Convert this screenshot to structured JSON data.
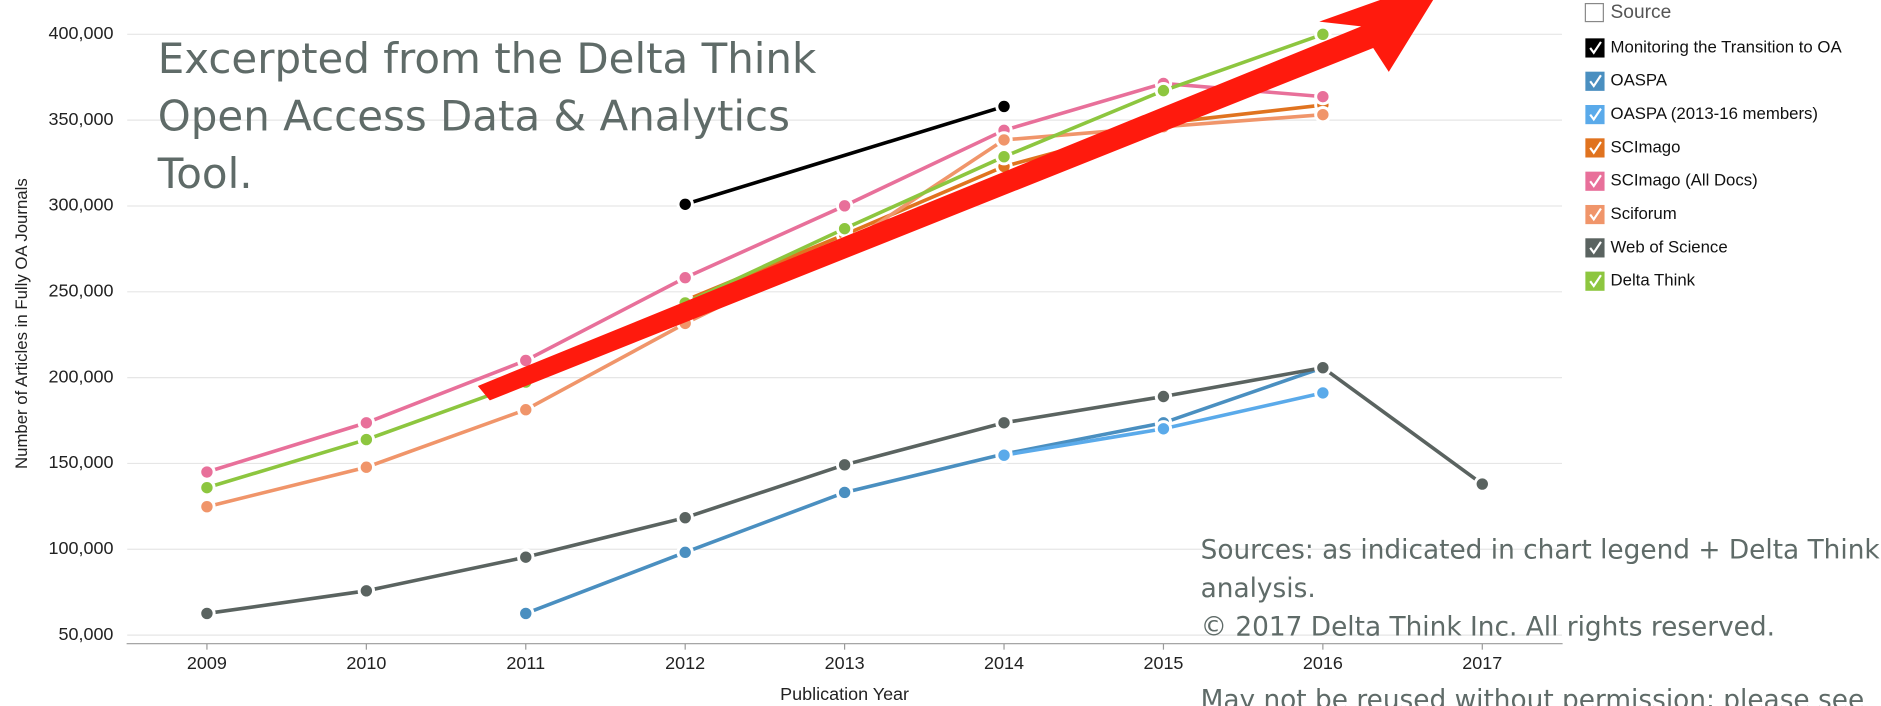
{
  "chart_data": {
    "type": "line",
    "xlabel": "Publication Year",
    "ylabel": "Number of Articles in Fully OA Journals",
    "xlim": [
      2008.5,
      2017.5
    ],
    "xticks": [
      2009,
      2010,
      2011,
      2012,
      2013,
      2014,
      2015,
      2016,
      2017
    ],
    "ylim": [
      45000,
      420000
    ],
    "yticks": [
      {
        "value": 50000,
        "label": "50,000"
      },
      {
        "value": 100000,
        "label": "100,000"
      },
      {
        "value": 150000,
        "label": "150,000"
      },
      {
        "value": 200000,
        "label": "200,000"
      },
      {
        "value": 250000,
        "label": "250,000"
      },
      {
        "value": 300000,
        "label": "300,000"
      },
      {
        "value": 350000,
        "label": "350,000"
      },
      {
        "value": 400000,
        "label": "400,000"
      }
    ],
    "grid": true,
    "legend_title": "Source",
    "legend_position": "right",
    "annotation_lines": [
      "Excerpted from the Delta Think",
      "Open Access Data & Analytics",
      "Tool."
    ],
    "source_lines": [
      "Sources: as indicated in chart legend + Delta Think",
      "analysis.",
      "© 2017 Delta Think Inc. All rights reserved.",
      "May not be reused without permission; please see"
    ],
    "series": [
      {
        "name": "Monitoring the Transition to OA",
        "color": "#000000",
        "x": [
          2012,
          2014
        ],
        "values": [
          301000,
          358000
        ]
      },
      {
        "name": "OASPA",
        "color": "#4a8fc0",
        "x": [
          2011,
          2012,
          2013,
          2014,
          2015,
          2016
        ],
        "values": [
          62600,
          98200,
          133100,
          155500,
          173700,
          205800
        ]
      },
      {
        "name": "OASPA (2013-16 members)",
        "color": "#5aaaea",
        "x": [
          2014,
          2015,
          2016
        ],
        "values": [
          154800,
          170200,
          191100
        ]
      },
      {
        "name": "SCImago",
        "color": "#e0731f",
        "x": [
          2012,
          2013,
          2014,
          2015,
          2016
        ],
        "values": [
          245000,
          283300,
          323000,
          348300,
          358800
        ]
      },
      {
        "name": "SCImago (All Docs)",
        "color": "#e8709a",
        "x": [
          2009,
          2010,
          2011,
          2012,
          2013,
          2014,
          2015,
          2016
        ],
        "values": [
          145000,
          173700,
          210000,
          258200,
          300100,
          344100,
          371400,
          363700
        ]
      },
      {
        "name": "Sciforum",
        "color": "#f0956a",
        "x": [
          2009,
          2010,
          2011,
          2012,
          2013,
          2014,
          2015,
          2016
        ],
        "values": [
          124800,
          147800,
          181300,
          231600,
          277000,
          338500,
          346200,
          353200
        ]
      },
      {
        "name": "Web of Science",
        "color": "#5a6360",
        "x": [
          2009,
          2010,
          2011,
          2012,
          2013,
          2014,
          2015,
          2016,
          2017
        ],
        "values": [
          62600,
          75800,
          95400,
          118400,
          149200,
          173700,
          189000,
          205800,
          138000
        ]
      },
      {
        "name": "Delta Think",
        "color": "#8dc63f",
        "x": [
          2009,
          2010,
          2011,
          2012,
          2013,
          2014,
          2015,
          2016
        ],
        "values": [
          135900,
          163900,
          197400,
          243500,
          286800,
          328700,
          367200,
          400000
        ]
      }
    ]
  }
}
